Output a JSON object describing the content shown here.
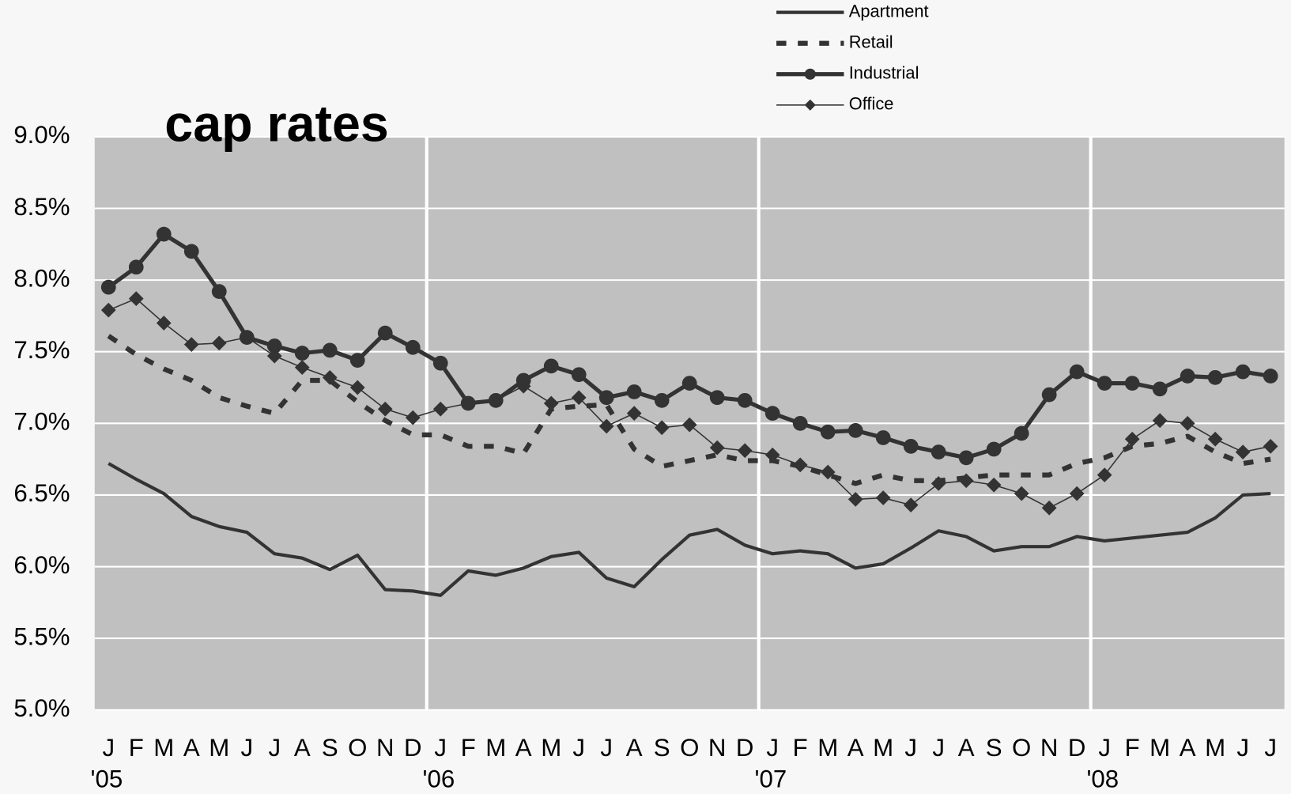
{
  "chart_data": {
    "type": "line",
    "title": "cap rates",
    "categories": [
      "J",
      "F",
      "M",
      "A",
      "M",
      "J",
      "J",
      "A",
      "S",
      "O",
      "N",
      "D",
      "J",
      "F",
      "M",
      "A",
      "M",
      "J",
      "J",
      "A",
      "S",
      "O",
      "N",
      "D",
      "J",
      "F",
      "M",
      "A",
      "M",
      "J",
      "J",
      "A",
      "S",
      "O",
      "N",
      "D",
      "J",
      "F",
      "M",
      "A",
      "M",
      "J",
      "J"
    ],
    "year_labels": [
      "'05",
      "'06",
      "'07",
      "'08"
    ],
    "ylim": [
      5.0,
      9.0
    ],
    "yticks": [
      {
        "value": 5.0,
        "label": "5.0%"
      },
      {
        "value": 5.5,
        "label": "5.5%"
      },
      {
        "value": 6.0,
        "label": "6.0%"
      },
      {
        "value": 6.5,
        "label": "6.5%"
      },
      {
        "value": 7.0,
        "label": "7.0%"
      },
      {
        "value": 7.5,
        "label": "7.5%"
      },
      {
        "value": 8.0,
        "label": "8.0%"
      },
      {
        "value": 8.5,
        "label": "8.5%"
      },
      {
        "value": 9.0,
        "label": "9.0%"
      }
    ],
    "grid": true,
    "legend": "top",
    "series": [
      {
        "name": "Apartment",
        "color": "#333333",
        "line_style": "solid",
        "marker": "none",
        "values": [
          6.72,
          6.61,
          6.51,
          6.35,
          6.28,
          6.24,
          6.09,
          6.06,
          5.98,
          6.08,
          5.84,
          5.83,
          5.8,
          5.97,
          5.94,
          5.99,
          6.07,
          6.1,
          5.92,
          5.86,
          6.05,
          6.22,
          6.26,
          6.15,
          6.09,
          6.11,
          6.09,
          5.99,
          6.02,
          6.13,
          6.25,
          6.21,
          6.11,
          6.14,
          6.14,
          6.21,
          6.18,
          6.2,
          6.22,
          6.24,
          6.34,
          6.5,
          6.51
        ]
      },
      {
        "name": "Retail",
        "color": "#333333",
        "line_style": "dashed",
        "marker": "none",
        "values": [
          7.61,
          7.48,
          7.38,
          7.3,
          7.18,
          7.12,
          7.07,
          7.3,
          7.3,
          7.15,
          7.02,
          6.92,
          6.92,
          6.84,
          6.84,
          6.79,
          7.1,
          7.12,
          7.13,
          6.82,
          6.7,
          6.74,
          6.78,
          6.74,
          6.74,
          6.7,
          6.64,
          6.58,
          6.64,
          6.6,
          6.6,
          6.62,
          6.64,
          6.64,
          6.64,
          6.72,
          6.76,
          6.84,
          6.86,
          6.91,
          6.8,
          6.72,
          6.75
        ]
      },
      {
        "name": "Industrial",
        "color": "#333333",
        "line_style": "solid",
        "marker": "circle",
        "values": [
          7.95,
          8.09,
          8.32,
          8.2,
          7.92,
          7.6,
          7.54,
          7.49,
          7.51,
          7.44,
          7.63,
          7.53,
          7.42,
          7.14,
          7.16,
          7.3,
          7.4,
          7.34,
          7.18,
          7.22,
          7.16,
          7.28,
          7.18,
          7.16,
          7.07,
          7.0,
          6.94,
          6.95,
          6.9,
          6.84,
          6.8,
          6.76,
          6.82,
          6.93,
          7.2,
          7.36,
          7.28,
          7.28,
          7.24,
          7.33,
          7.32,
          7.36,
          7.33
        ]
      },
      {
        "name": "Office",
        "color": "#333333",
        "line_style": "thin",
        "marker": "diamond",
        "values": [
          7.79,
          7.87,
          7.7,
          7.55,
          7.56,
          7.6,
          7.47,
          7.39,
          7.32,
          7.25,
          7.1,
          7.04,
          7.1,
          7.14,
          7.16,
          7.26,
          7.14,
          7.18,
          6.98,
          7.07,
          6.97,
          6.99,
          6.83,
          6.81,
          6.78,
          6.71,
          6.66,
          6.47,
          6.48,
          6.43,
          6.58,
          6.6,
          6.57,
          6.51,
          6.41,
          6.51,
          6.64,
          6.89,
          7.02,
          7.0,
          6.89,
          6.8,
          6.84
        ]
      }
    ]
  }
}
